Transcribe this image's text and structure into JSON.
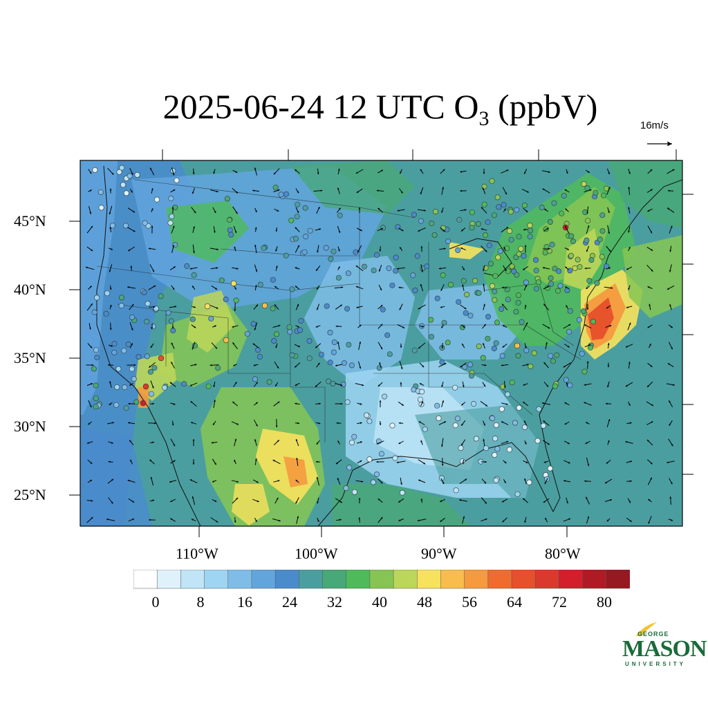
{
  "title": {
    "main": "2025-06-24 12 UTC O",
    "subscript": "3",
    "unit": " (ppbV)"
  },
  "wind_reference": {
    "label": "16m/s"
  },
  "axes": {
    "latitude_labels": [
      "45°N",
      "40°N",
      "35°N",
      "30°N",
      "25°N"
    ],
    "longitude_labels": [
      "110°W",
      "100°W",
      "90°W",
      "80°W"
    ]
  },
  "colorbar": {
    "tick_labels": [
      "0",
      "8",
      "16",
      "24",
      "32",
      "40",
      "48",
      "56",
      "64",
      "72",
      "80"
    ],
    "colors": [
      "#ffffff",
      "#dff2fb",
      "#bfe5f7",
      "#9dd5f2",
      "#7fbde8",
      "#62a5dd",
      "#4a8ccb",
      "#4b9ea0",
      "#48a877",
      "#4fba5a",
      "#86c553",
      "#bcd659",
      "#f7e25d",
      "#f8bd4d",
      "#f59a3f",
      "#f06c2e",
      "#e6502b",
      "#d93a2c",
      "#d11f2c",
      "#b01a24",
      "#961820"
    ]
  },
  "logo": {
    "line1": "GEORGE",
    "line2": "MASON",
    "line3": "UNIVERSITY",
    "accent_color": "#1b6b3a",
    "flame_color": "#f2c230"
  }
}
